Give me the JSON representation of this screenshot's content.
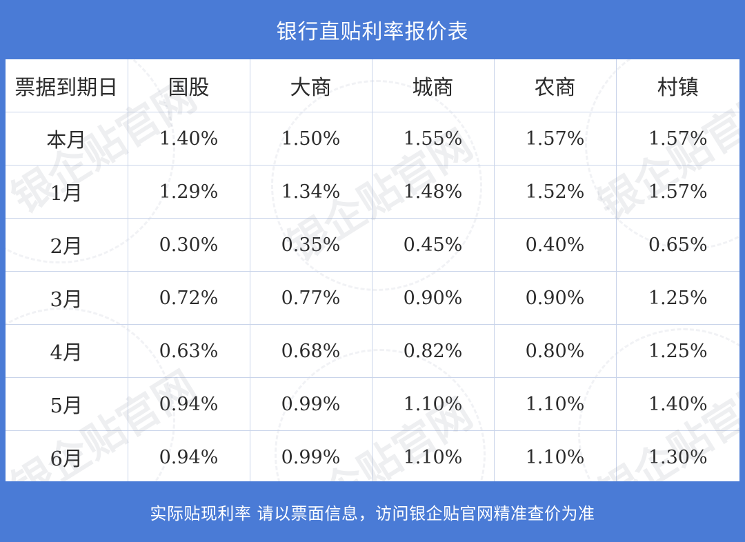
{
  "title": "银行直贴利率报价表",
  "footer": "实际贴现利率  请以票面信息，访问银企贴官网精准查价为准",
  "watermark_text": "银企贴官网",
  "table": {
    "headers": [
      "票据到期日",
      "国股",
      "大商",
      "城商",
      "农商",
      "村镇"
    ],
    "rows": [
      {
        "label": "本月",
        "values": [
          "1.40%",
          "1.50%",
          "1.55%",
          "1.57%",
          "1.57%"
        ]
      },
      {
        "label": "1月",
        "values": [
          "1.29%",
          "1.34%",
          "1.48%",
          "1.52%",
          "1.57%"
        ]
      },
      {
        "label": "2月",
        "values": [
          "0.30%",
          "0.35%",
          "0.45%",
          "0.40%",
          "0.65%"
        ]
      },
      {
        "label": "3月",
        "values": [
          "0.72%",
          "0.77%",
          "0.90%",
          "0.90%",
          "1.25%"
        ]
      },
      {
        "label": "4月",
        "values": [
          "0.63%",
          "0.68%",
          "0.82%",
          "0.80%",
          "1.25%"
        ]
      },
      {
        "label": "5月",
        "values": [
          "0.94%",
          "0.99%",
          "1.10%",
          "1.10%",
          "1.40%"
        ]
      },
      {
        "label": "6月",
        "values": [
          "0.94%",
          "0.99%",
          "1.10%",
          "1.10%",
          "1.30%"
        ]
      }
    ]
  },
  "colors": {
    "frame_blue": "#4a7bd6",
    "grid_line": "#c9d4ea",
    "text": "#2b2b2b"
  }
}
